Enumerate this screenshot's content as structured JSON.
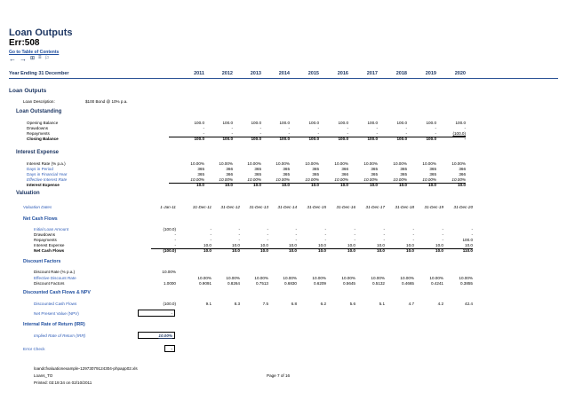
{
  "title": "Loan Outputs",
  "error": "Err:508",
  "toc_link": "Go to Table of Contents",
  "header": {
    "label": "Year Ending 31 December",
    "years": [
      "2011",
      "2012",
      "2013",
      "2014",
      "2015",
      "2016",
      "2017",
      "2018",
      "2019",
      "2020"
    ]
  },
  "loan_outputs": {
    "heading": "Loan Outputs",
    "description_label": "Loan Description:",
    "description_value": "$100 Bond @ 10% p.a."
  },
  "loan_outstanding": {
    "heading": "Loan Outstanding",
    "rows": [
      {
        "label": "Opening Balance",
        "values": [
          "100.0",
          "100.0",
          "100.0",
          "100.0",
          "100.0",
          "100.0",
          "100.0",
          "100.0",
          "100.0",
          "100.0"
        ]
      },
      {
        "label": "Drawdowns",
        "values": [
          "-",
          "-",
          "-",
          "-",
          "-",
          "-",
          "-",
          "-",
          "-",
          "-"
        ]
      },
      {
        "label": "Repayments",
        "values": [
          "-",
          "-",
          "-",
          "-",
          "-",
          "-",
          "-",
          "-",
          "-",
          "(100.0)"
        ]
      },
      {
        "label": "Closing Balance",
        "values": [
          "100.0",
          "100.0",
          "100.0",
          "100.0",
          "100.0",
          "100.0",
          "100.0",
          "100.0",
          "100.0",
          "-"
        ]
      }
    ]
  },
  "interest_expense": {
    "heading": "Interest Expense",
    "rows": [
      {
        "label": "Interest Rate (% p.a.)",
        "values": [
          "10.00%",
          "10.00%",
          "10.00%",
          "10.00%",
          "10.00%",
          "10.00%",
          "10.00%",
          "10.00%",
          "10.00%",
          "10.00%"
        ]
      },
      {
        "label": "Days in Period",
        "values": [
          "365",
          "366",
          "365",
          "365",
          "365",
          "366",
          "365",
          "365",
          "365",
          "366"
        ]
      },
      {
        "label": "Days in Financial Year",
        "values": [
          "365",
          "366",
          "365",
          "365",
          "365",
          "366",
          "365",
          "365",
          "365",
          "366"
        ]
      },
      {
        "label": "Effective Interest Rate",
        "values": [
          "10.00%",
          "10.00%",
          "10.00%",
          "10.00%",
          "10.00%",
          "10.00%",
          "10.00%",
          "10.00%",
          "10.00%",
          "10.00%"
        ]
      },
      {
        "label": "Interest Expense",
        "values": [
          "10.0",
          "10.0",
          "10.0",
          "10.0",
          "10.0",
          "10.0",
          "10.0",
          "10.0",
          "10.0",
          "10.0"
        ]
      }
    ]
  },
  "valuation": {
    "heading": "Valuation",
    "dates_label": "Valuation Dates",
    "dates": [
      "1-Jan-11",
      "31-Dec-11",
      "31-Dec-12",
      "31-Dec-13",
      "31-Dec-14",
      "31-Dec-15",
      "31-Dec-16",
      "31-Dec-17",
      "31-Dec-18",
      "31-Dec-19",
      "31-Dec-20"
    ],
    "net_cash_flows": {
      "heading": "Net Cash Flows",
      "rows": [
        {
          "label": "Initial Loan Amount",
          "values": [
            "(100.0)",
            "-",
            "-",
            "-",
            "-",
            "-",
            "-",
            "-",
            "-",
            "-",
            "-"
          ]
        },
        {
          "label": "Drawdowns",
          "values": [
            "-",
            "-",
            "-",
            "-",
            "-",
            "-",
            "-",
            "-",
            "-",
            "-",
            "-"
          ]
        },
        {
          "label": "Repayments",
          "values": [
            "-",
            "-",
            "-",
            "-",
            "-",
            "-",
            "-",
            "-",
            "-",
            "-",
            "100.0"
          ]
        },
        {
          "label": "Interest Expense",
          "values": [
            "-",
            "10.0",
            "10.0",
            "10.0",
            "10.0",
            "10.0",
            "10.0",
            "10.0",
            "10.0",
            "10.0",
            "10.0"
          ]
        },
        {
          "label": "Net Cash Flows",
          "values": [
            "(100.0)",
            "10.0",
            "10.0",
            "10.0",
            "10.0",
            "10.0",
            "10.0",
            "10.0",
            "10.0",
            "10.0",
            "110.0"
          ]
        }
      ]
    },
    "discount_factors": {
      "heading": "Discount Factors",
      "rows": [
        {
          "label": "Discount Rate (% p.a.)",
          "values": [
            "10.00%",
            "",
            "",
            "",
            "",
            "",
            "",
            "",
            "",
            "",
            ""
          ]
        },
        {
          "label": "Effective Discount Rate",
          "values": [
            "",
            "10.00%",
            "10.00%",
            "10.00%",
            "10.00%",
            "10.00%",
            "10.00%",
            "10.00%",
            "10.00%",
            "10.00%",
            "10.00%"
          ]
        },
        {
          "label": "Discount Factors",
          "values": [
            "1.0000",
            "0.9091",
            "0.8264",
            "0.7513",
            "0.6830",
            "0.6209",
            "0.5645",
            "0.5132",
            "0.4665",
            "0.4241",
            "0.3855"
          ]
        }
      ]
    },
    "discounted": {
      "heading": "Discounted Cash Flows & NPV",
      "dcf_label": "Discounted Cash Flows",
      "dcf_values": [
        "(100.0)",
        "9.1",
        "8.3",
        "7.5",
        "6.8",
        "6.2",
        "5.6",
        "5.1",
        "4.7",
        "4.2",
        "42.4"
      ],
      "npv_label": "Net Present Value (NPV)",
      "npv_value": "-"
    },
    "irr": {
      "heading": "Internal Rate of Return (IRR)",
      "label": "Implied Rate of Return (IRR)",
      "value": "10.00%"
    },
    "error_check_label": "Error Check",
    "error_check_value": "-"
  },
  "footer": {
    "file": "loandcfvaluationexample-129730791243​04-phpapp02.xls",
    "sheet": "Loans_TO",
    "printed": "Printed: 03:19:34 on 02/10/2011",
    "page": "Page 7 of 16"
  }
}
